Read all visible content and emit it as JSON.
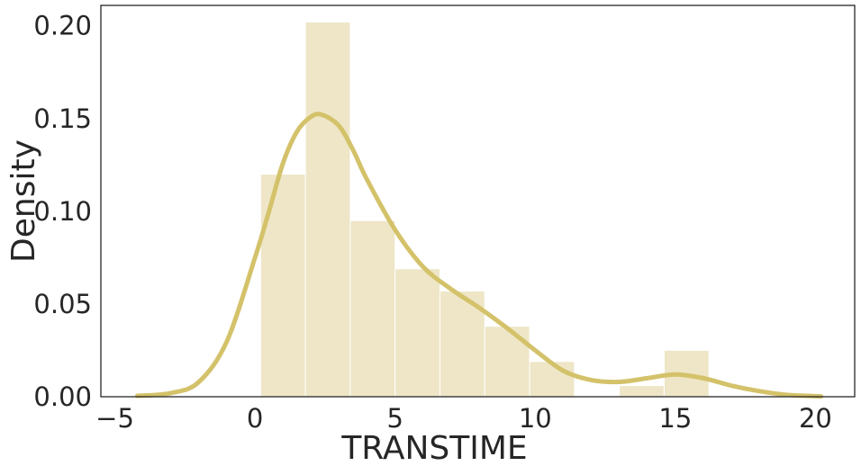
{
  "chart_data": {
    "type": "histogram",
    "title": "",
    "xlabel": "TRANSTIME",
    "ylabel": "Density",
    "xlim": [
      -5.5,
      21.4
    ],
    "ylim": [
      0,
      0.211
    ],
    "xticks": [
      -5,
      0,
      5,
      10,
      15,
      20
    ],
    "xtick_labels": [
      "−5",
      "0",
      "5",
      "10",
      "15",
      "20"
    ],
    "yticks": [
      0.0,
      0.05,
      0.1,
      0.15,
      0.2
    ],
    "ytick_labels": [
      "0.00",
      "0.05",
      "0.10",
      "0.15",
      "0.20"
    ],
    "grid": false,
    "bins": [
      {
        "x0": 0.2,
        "x1": 1.8,
        "density": 0.12
      },
      {
        "x0": 1.8,
        "x1": 3.4,
        "density": 0.202
      },
      {
        "x0": 3.4,
        "x1": 5.0,
        "density": 0.095
      },
      {
        "x0": 5.0,
        "x1": 6.6,
        "density": 0.069
      },
      {
        "x0": 6.6,
        "x1": 8.2,
        "density": 0.057
      },
      {
        "x0": 8.2,
        "x1": 9.8,
        "density": 0.038
      },
      {
        "x0": 9.8,
        "x1": 11.4,
        "density": 0.019
      },
      {
        "x0": 11.4,
        "x1": 13.0,
        "density": 0.0
      },
      {
        "x0": 13.0,
        "x1": 14.6,
        "density": 0.006
      },
      {
        "x0": 14.6,
        "x1": 16.2,
        "density": 0.025
      }
    ],
    "kde": {
      "x": [
        -4.2,
        -3.0,
        -2.0,
        -1.0,
        0.0,
        0.5,
        1.0,
        1.5,
        2.0,
        2.4,
        3.0,
        3.5,
        4.0,
        5.0,
        6.0,
        7.0,
        8.0,
        9.0,
        10.0,
        11.0,
        12.0,
        13.0,
        14.0,
        15.0,
        16.0,
        17.0,
        18.0,
        19.0,
        20.2
      ],
      "y": [
        0.0005,
        0.002,
        0.008,
        0.03,
        0.075,
        0.1,
        0.126,
        0.143,
        0.151,
        0.152,
        0.146,
        0.133,
        0.117,
        0.09,
        0.07,
        0.058,
        0.048,
        0.037,
        0.025,
        0.014,
        0.009,
        0.008,
        0.01,
        0.012,
        0.01,
        0.006,
        0.003,
        0.001,
        0.0002
      ]
    },
    "colors": {
      "bar_fill": "#d4c173",
      "bar_opacity": 0.4,
      "bar_edge": "#ffffff",
      "kde_line": "#d4c26a",
      "axis": "#262626",
      "text": "#262626"
    }
  }
}
